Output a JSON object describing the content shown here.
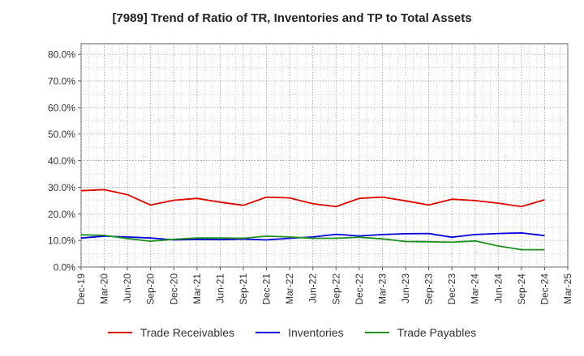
{
  "title": "[7989]  Trend of Ratio of TR, Inventories and TP to Total Assets",
  "chart_data": {
    "type": "line",
    "title": "[7989]  Trend of Ratio of TR, Inventories and TP to Total Assets",
    "xlabel": "",
    "ylabel": "",
    "x": [
      "Dec-19",
      "Mar-20",
      "Jun-20",
      "Sep-20",
      "Dec-20",
      "Mar-21",
      "Jun-21",
      "Sep-21",
      "Dec-21",
      "Mar-22",
      "Jun-22",
      "Sep-22",
      "Dec-22",
      "Mar-23",
      "Jun-23",
      "Sep-23",
      "Dec-23",
      "Mar-24",
      "Jun-24",
      "Sep-24",
      "Dec-24"
    ],
    "x_ticks": [
      "Dec-19",
      "Mar-20",
      "Jun-20",
      "Sep-20",
      "Dec-20",
      "Mar-21",
      "Jun-21",
      "Sep-21",
      "Dec-21",
      "Mar-22",
      "Jun-22",
      "Sep-22",
      "Dec-22",
      "Mar-23",
      "Jun-23",
      "Sep-23",
      "Dec-23",
      "Mar-24",
      "Jun-24",
      "Sep-24",
      "Dec-24",
      "Mar-25"
    ],
    "y_ticks": [
      "0.0%",
      "10.0%",
      "20.0%",
      "30.0%",
      "40.0%",
      "50.0%",
      "60.0%",
      "70.0%",
      "80.0%"
    ],
    "ylim": [
      0,
      84
    ],
    "grid": true,
    "legend_position": "bottom",
    "series": [
      {
        "name": "Trade Receivables",
        "color": "#e00000",
        "values": [
          28.7,
          29.1,
          27.2,
          23.3,
          25.1,
          25.8,
          24.4,
          23.2,
          26.3,
          26.0,
          23.8,
          22.7,
          25.8,
          26.3,
          24.9,
          23.3,
          25.5,
          25.0,
          24.0,
          22.7,
          25.3
        ]
      },
      {
        "name": "Inventories",
        "color": "#0000dd",
        "values": [
          10.9,
          11.6,
          11.3,
          10.9,
          10.2,
          10.4,
          10.3,
          10.5,
          10.2,
          10.8,
          11.3,
          12.3,
          11.7,
          12.2,
          12.5,
          12.6,
          11.2,
          12.2,
          12.6,
          12.8,
          11.8
        ]
      },
      {
        "name": "Trade Payables",
        "color": "#1f8f1f",
        "values": [
          12.1,
          11.9,
          10.7,
          9.7,
          10.4,
          10.9,
          10.9,
          10.8,
          11.6,
          11.3,
          10.8,
          10.8,
          11.2,
          10.6,
          9.6,
          9.5,
          9.3,
          9.8,
          7.9,
          6.5,
          6.5
        ]
      }
    ]
  }
}
